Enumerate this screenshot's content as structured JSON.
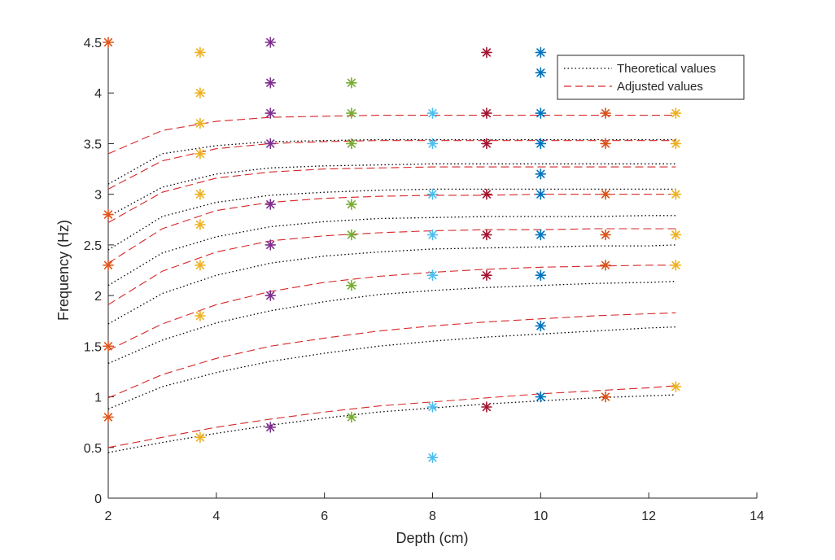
{
  "chart_data": {
    "type": "scatter",
    "xlabel": "Depth (cm)",
    "ylabel": "Frequency (Hz)",
    "xlim": [
      2,
      14
    ],
    "ylim": [
      0,
      4.5
    ],
    "xticks": [
      2,
      4,
      6,
      8,
      10,
      12,
      14
    ],
    "yticks": [
      0,
      0.5,
      1,
      1.5,
      2,
      2.5,
      3,
      3.5,
      4,
      4.5
    ],
    "grid": false,
    "legend_position": "top-right",
    "legend": [
      {
        "label": "Theoretical values",
        "style": "dotted",
        "color": "#000000"
      },
      {
        "label": "Adjusted values",
        "style": "dashed",
        "color": "#d62728"
      }
    ],
    "scatter_series": [
      {
        "x": 2.0,
        "color": "#e0561b",
        "y": [
          0.8,
          1.5,
          2.3,
          2.8,
          4.5
        ]
      },
      {
        "x": 3.7,
        "color": "#edb120",
        "y": [
          0.6,
          1.8,
          2.3,
          2.7,
          3.0,
          3.4,
          3.7,
          4.0,
          4.4
        ]
      },
      {
        "x": 5.0,
        "color": "#7e2f8e",
        "y": [
          0.7,
          2.0,
          2.5,
          2.9,
          3.5,
          3.8,
          4.1,
          4.5
        ]
      },
      {
        "x": 6.5,
        "color": "#77ac30",
        "y": [
          0.8,
          2.1,
          2.6,
          2.9,
          3.5,
          3.8,
          4.1
        ]
      },
      {
        "x": 8.0,
        "color": "#4dbeee",
        "y": [
          0.4,
          0.9,
          2.2,
          2.6,
          3.0,
          3.5,
          3.8
        ]
      },
      {
        "x": 9.0,
        "color": "#a2142f",
        "y": [
          0.9,
          2.2,
          2.6,
          3.0,
          3.5,
          3.8,
          4.4
        ]
      },
      {
        "x": 10.0,
        "color": "#0072bd",
        "y": [
          1.0,
          1.7,
          2.2,
          2.6,
          3.0,
          3.2,
          3.5,
          3.8,
          4.2,
          4.4
        ]
      },
      {
        "x": 11.2,
        "color": "#d95319",
        "y": [
          1.0,
          2.3,
          2.6,
          3.0,
          3.5,
          3.8
        ]
      },
      {
        "x": 12.5,
        "color": "#edb120",
        "y": [
          1.1,
          2.3,
          2.6,
          3.0,
          3.5,
          3.8
        ]
      }
    ],
    "curve_x": [
      2,
      3,
      4,
      5,
      6,
      7,
      8,
      9,
      10,
      11,
      12,
      12.5
    ],
    "theoretical_curves": [
      [
        0.45,
        0.55,
        0.64,
        0.72,
        0.79,
        0.85,
        0.89,
        0.93,
        0.96,
        0.99,
        1.01,
        1.02
      ],
      [
        0.88,
        1.1,
        1.24,
        1.35,
        1.43,
        1.5,
        1.55,
        1.59,
        1.62,
        1.65,
        1.68,
        1.69
      ],
      [
        1.33,
        1.56,
        1.73,
        1.85,
        1.94,
        2.01,
        2.05,
        2.08,
        2.1,
        2.12,
        2.13,
        2.14
      ],
      [
        1.72,
        2.02,
        2.2,
        2.32,
        2.39,
        2.43,
        2.46,
        2.47,
        2.48,
        2.49,
        2.49,
        2.5
      ],
      [
        2.1,
        2.42,
        2.58,
        2.68,
        2.73,
        2.76,
        2.77,
        2.78,
        2.78,
        2.78,
        2.79,
        2.79
      ],
      [
        2.45,
        2.78,
        2.92,
        2.99,
        3.02,
        3.04,
        3.05,
        3.05,
        3.05,
        3.05,
        3.05,
        3.05
      ],
      [
        2.78,
        3.07,
        3.2,
        3.26,
        3.28,
        3.29,
        3.3,
        3.3,
        3.3,
        3.3,
        3.3,
        3.3
      ],
      [
        3.1,
        3.4,
        3.48,
        3.52,
        3.53,
        3.54,
        3.54,
        3.54,
        3.54,
        3.54,
        3.54,
        3.54
      ]
    ],
    "adjusted_curves": [
      [
        0.5,
        0.6,
        0.7,
        0.78,
        0.85,
        0.91,
        0.95,
        0.99,
        1.03,
        1.06,
        1.09,
        1.11
      ],
      [
        0.99,
        1.22,
        1.38,
        1.5,
        1.58,
        1.65,
        1.7,
        1.74,
        1.77,
        1.8,
        1.82,
        1.83
      ],
      [
        1.46,
        1.72,
        1.91,
        2.04,
        2.13,
        2.19,
        2.23,
        2.26,
        2.28,
        2.29,
        2.3,
        2.3
      ],
      [
        1.91,
        2.24,
        2.43,
        2.54,
        2.59,
        2.62,
        2.64,
        2.65,
        2.65,
        2.66,
        2.66,
        2.66
      ],
      [
        2.32,
        2.66,
        2.84,
        2.92,
        2.96,
        2.98,
        2.99,
        2.99,
        3.0,
        3.0,
        3.0,
        3.0
      ],
      [
        2.72,
        3.02,
        3.16,
        3.22,
        3.25,
        3.26,
        3.27,
        3.27,
        3.27,
        3.27,
        3.27,
        3.27
      ],
      [
        3.05,
        3.33,
        3.45,
        3.5,
        3.52,
        3.53,
        3.53,
        3.53,
        3.53,
        3.53,
        3.53,
        3.53
      ],
      [
        3.4,
        3.63,
        3.72,
        3.76,
        3.77,
        3.78,
        3.78,
        3.78,
        3.78,
        3.78,
        3.78,
        3.78
      ]
    ]
  }
}
